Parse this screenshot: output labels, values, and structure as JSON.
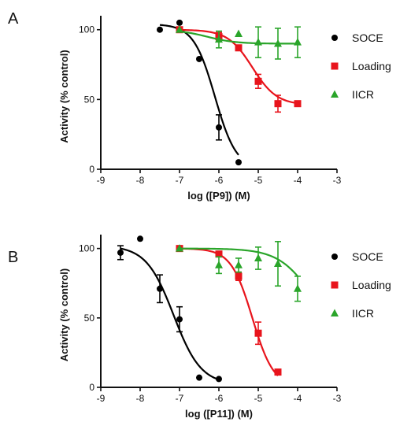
{
  "chart_data": [
    {
      "type": "scatter",
      "panel_label": "A",
      "xlabel": "log ([P9]) (M)",
      "ylabel": "Activity (% control)",
      "xlim": [
        -9,
        -3
      ],
      "ylim": [
        0,
        110
      ],
      "x_ticks": [
        -9,
        -8,
        -7,
        -6,
        -5,
        -4,
        -3
      ],
      "y_ticks": [
        0,
        50,
        100
      ],
      "x_tick_labels": [
        "-9",
        "-8",
        "-7",
        "-6",
        "-5",
        "-4",
        "-3"
      ],
      "y_tick_labels": [
        "0",
        "50",
        "100"
      ],
      "legend": "right",
      "series": [
        {
          "name": "SOCE",
          "color": "#000000",
          "marker": "circle",
          "x": [
            -7.5,
            -7.0,
            -6.5,
            -6.0,
            -5.5
          ],
          "y": [
            100,
            105,
            79,
            30,
            5
          ],
          "err": [
            0,
            0,
            0,
            9,
            0
          ],
          "fit": {
            "top": 104,
            "bottom": 0,
            "logIC50": -6.1,
            "hill": 1.6,
            "x_from": -7.5,
            "x_to": -5.5
          }
        },
        {
          "name": "Loading",
          "color": "#e8141c",
          "marker": "square",
          "x": [
            -7.0,
            -6.0,
            -5.5,
            -5.0,
            -4.5,
            -4.0
          ],
          "y": [
            100,
            95,
            87,
            63,
            47,
            47
          ],
          "err": [
            0,
            3,
            0,
            5,
            6,
            0
          ],
          "fit": {
            "top": 100,
            "bottom": 46,
            "logIC50": -5.15,
            "hill": 1.4,
            "x_from": -7.0,
            "x_to": -4.0
          }
        },
        {
          "name": "IICR",
          "color": "#2aa52a",
          "marker": "triangle",
          "x": [
            -7.0,
            -6.0,
            -5.5,
            -5.0,
            -4.5,
            -4.0
          ],
          "y": [
            100,
            93,
            97,
            91,
            90,
            91
          ],
          "err": [
            0,
            6,
            0,
            11,
            11,
            11
          ],
          "fit": {
            "top": 100,
            "bottom": 90,
            "logIC50": -6.3,
            "hill": 1.2,
            "x_from": -7.0,
            "x_to": -4.0
          }
        }
      ]
    },
    {
      "type": "scatter",
      "panel_label": "B",
      "xlabel": "log ([P11]) (M)",
      "ylabel": "Activity (% control)",
      "xlim": [
        -9,
        -3
      ],
      "ylim": [
        0,
        110
      ],
      "x_ticks": [
        -9,
        -8,
        -7,
        -6,
        -5,
        -4,
        -3
      ],
      "y_ticks": [
        0,
        50,
        100
      ],
      "x_tick_labels": [
        "-9",
        "-8",
        "-7",
        "-6",
        "-5",
        "-4",
        "-3"
      ],
      "y_tick_labels": [
        "0",
        "50",
        "100"
      ],
      "legend": "right",
      "series": [
        {
          "name": "SOCE",
          "color": "#000000",
          "marker": "circle",
          "x": [
            -8.5,
            -8.0,
            -7.5,
            -7.0,
            -6.5,
            -6.0
          ],
          "y": [
            97,
            107,
            71,
            49,
            7,
            6
          ],
          "err": [
            5,
            0,
            10,
            9,
            0,
            0
          ],
          "fit": {
            "top": 102,
            "bottom": 2,
            "logIC50": -7.15,
            "hill": 1.25,
            "x_from": -8.5,
            "x_to": -6.0
          }
        },
        {
          "name": "Loading",
          "color": "#e8141c",
          "marker": "square",
          "x": [
            -7.0,
            -6.0,
            -5.5,
            -5.0,
            -4.5
          ],
          "y": [
            100,
            96,
            80,
            39,
            11
          ],
          "err": [
            0,
            0,
            3,
            8,
            0
          ],
          "fit": {
            "top": 100,
            "bottom": 0,
            "logIC50": -5.15,
            "hill": 1.6,
            "x_from": -7.0,
            "x_to": -4.5
          }
        },
        {
          "name": "IICR",
          "color": "#2aa52a",
          "marker": "triangle",
          "x": [
            -7.0,
            -6.0,
            -5.5,
            -5.0,
            -4.5,
            -4.0
          ],
          "y": [
            100,
            88,
            88,
            93,
            89,
            71
          ],
          "err": [
            0,
            6,
            5,
            8,
            16,
            9
          ],
          "fit": {
            "top": 100,
            "bottom": 30,
            "logIC50": -3.6,
            "hill": 1.0,
            "x_from": -7.0,
            "x_to": -4.0
          }
        }
      ]
    }
  ]
}
